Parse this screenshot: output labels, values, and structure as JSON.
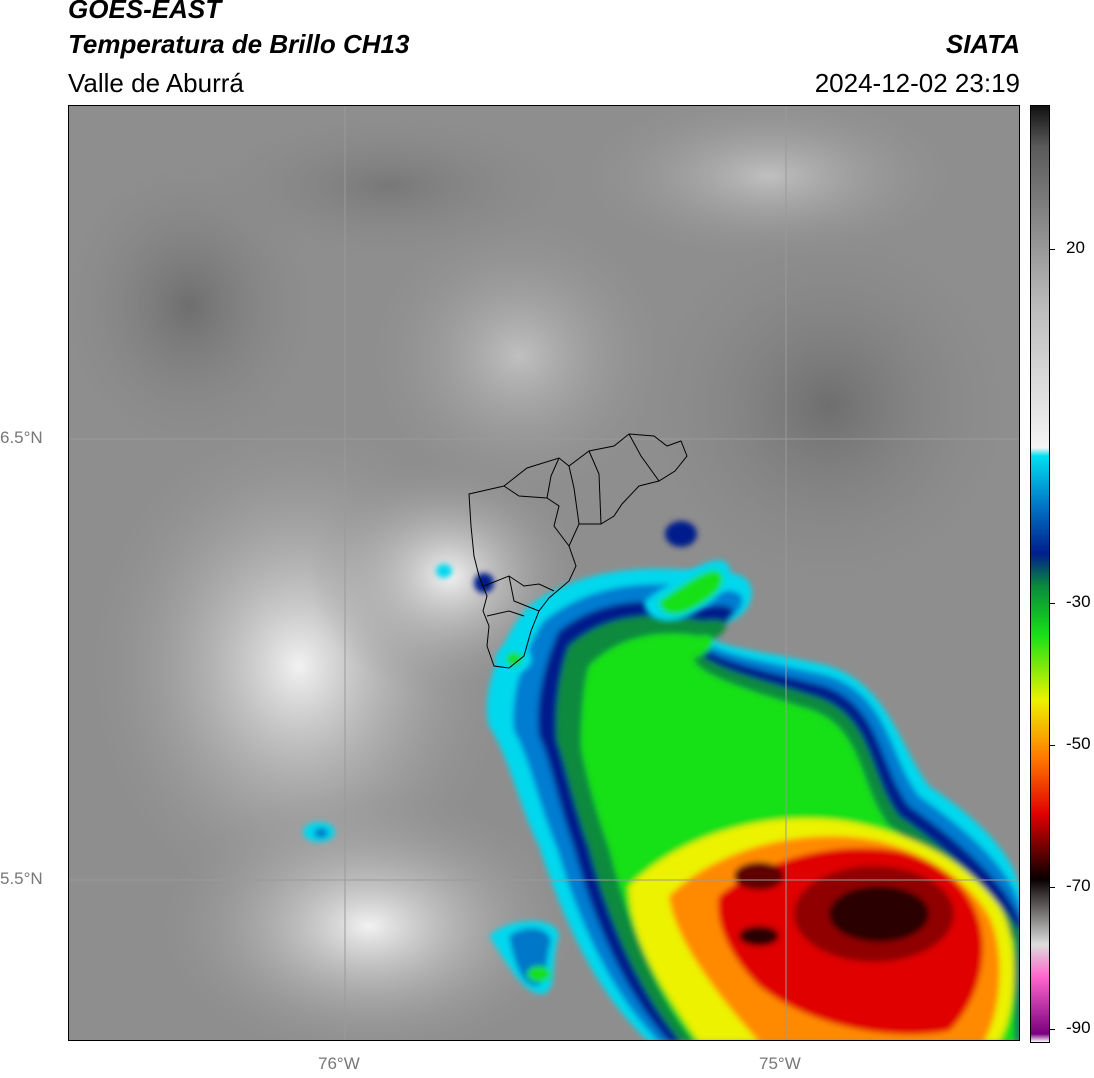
{
  "header": {
    "satellite": "GOES-EAST",
    "product": "Temperatura de Brillo CH13",
    "region": "Valle de Aburrá",
    "brand": "SIATA",
    "datetime": "2024-12-02 23:19"
  },
  "map": {
    "lat_labels": [
      "6.5°N",
      "5.5°N"
    ],
    "lon_labels": [
      "76°W",
      "75°W"
    ]
  },
  "colorbar": {
    "labels": [
      "20",
      "-30",
      "-50",
      "-70",
      "-90"
    ],
    "stops": [
      {
        "value": 25,
        "color": "#111111"
      },
      {
        "value": 20,
        "color": "#5a5a5a"
      },
      {
        "value": 0,
        "color": "#bdbdbd"
      },
      {
        "value": -17,
        "color": "#f4f4f4"
      },
      {
        "value": -18,
        "color": "#00e0f0"
      },
      {
        "value": -24,
        "color": "#0077c8"
      },
      {
        "value": -30,
        "color": "#001e8c"
      },
      {
        "value": -34,
        "color": "#0a8a3c"
      },
      {
        "value": -40,
        "color": "#18e018"
      },
      {
        "value": -48,
        "color": "#ecf200"
      },
      {
        "value": -55,
        "color": "#ff7a00"
      },
      {
        "value": -62,
        "color": "#e00000"
      },
      {
        "value": -70,
        "color": "#080000"
      },
      {
        "value": -78,
        "color": "#dcdcdc"
      },
      {
        "value": -82,
        "color": "#ff66cc"
      },
      {
        "value": -89,
        "color": "#7a0080"
      },
      {
        "value": -90,
        "color": "#ffffff"
      }
    ]
  }
}
